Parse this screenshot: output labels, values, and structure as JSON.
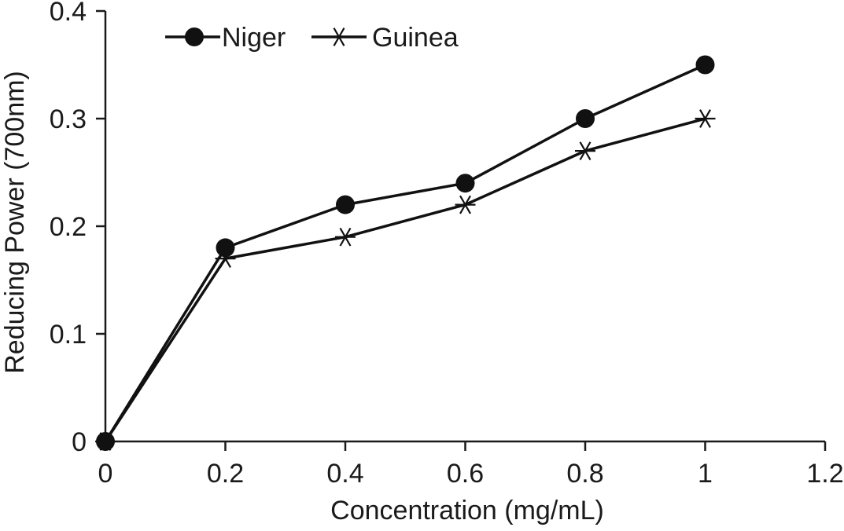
{
  "chart_data": {
    "type": "line",
    "title": "",
    "xlabel": "Concentration (mg/mL)",
    "ylabel": "Reducing Power (700nm)",
    "x": [
      0,
      0.2,
      0.4,
      0.6,
      0.8,
      1
    ],
    "xlim": [
      0,
      1.2
    ],
    "ylim": [
      0,
      0.4
    ],
    "xticks": [
      0,
      0.2,
      0.4,
      0.6,
      0.8,
      1,
      1.2
    ],
    "yticks": [
      0,
      0.1,
      0.2,
      0.3,
      0.4
    ],
    "xtick_labels": [
      "0",
      "0.2",
      "0.4",
      "0.6",
      "0.8",
      "1",
      "1.2"
    ],
    "ytick_labels": [
      "0",
      "0.1",
      "0.2",
      "0.3",
      "0.4"
    ],
    "grid": false,
    "legend_position": "top-left",
    "series": [
      {
        "name": "Niger",
        "marker": "filled-circle",
        "color": "#111111",
        "values": [
          0,
          0.18,
          0.22,
          0.24,
          0.3,
          0.35
        ]
      },
      {
        "name": "Guinea",
        "marker": "asterisk",
        "color": "#111111",
        "values": [
          0,
          0.17,
          0.19,
          0.22,
          0.27,
          0.3
        ]
      }
    ]
  }
}
